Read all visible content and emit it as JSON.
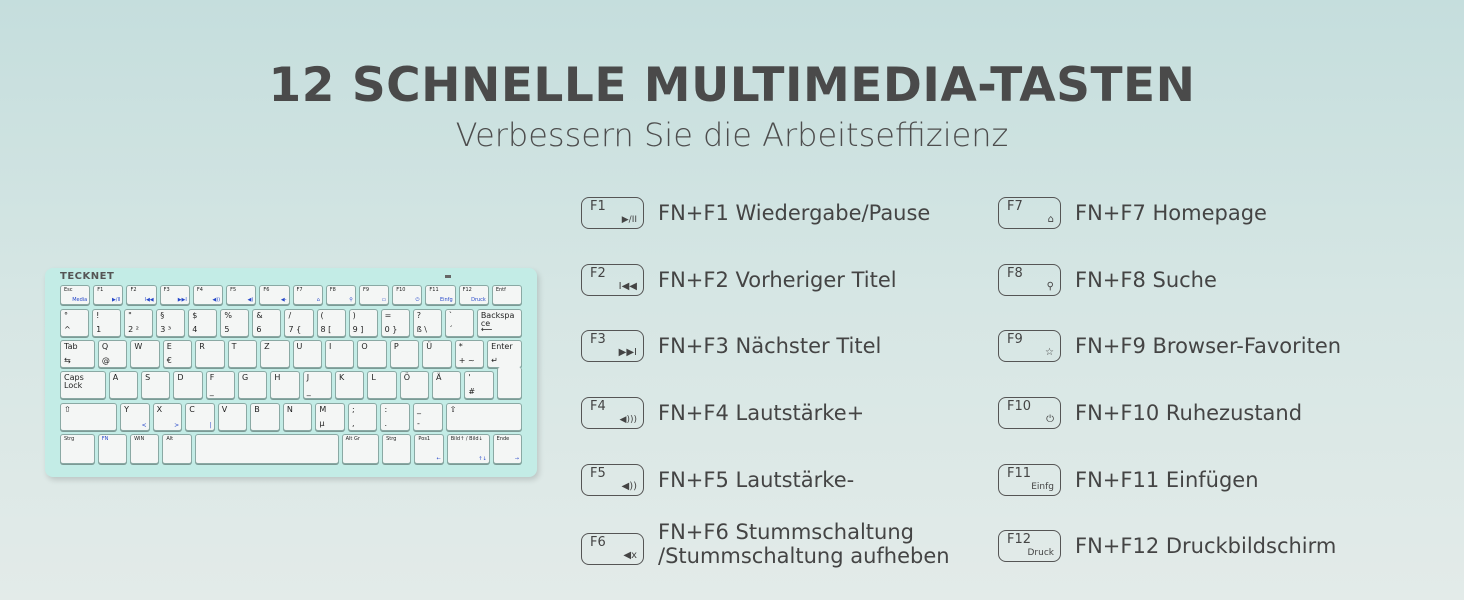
{
  "header": {
    "title": "12 SCHNELLE MULTIMEDIA-TASTEN",
    "subtitle": "Verbessern Sie die Arbeitseffizienz"
  },
  "keyboard": {
    "brand": "TECKNET",
    "rows": [
      [
        {
          "t": "Esc",
          "s": "Media"
        },
        {
          "t": "F1",
          "s": "▶/II"
        },
        {
          "t": "F2",
          "s": "I◀◀"
        },
        {
          "t": "F3",
          "s": "▶▶I"
        },
        {
          "t": "F4",
          "s": "◀))"
        },
        {
          "t": "F5",
          "s": "◀)"
        },
        {
          "t": "F6",
          "s": "◀-"
        },
        {
          "t": "F7",
          "s": "⌂"
        },
        {
          "t": "F8",
          "s": "⚲"
        },
        {
          "t": "F9",
          "s": "▭"
        },
        {
          "t": "F10",
          "s": "⏻"
        },
        {
          "t": "F11",
          "s": "Einfg"
        },
        {
          "t": "F12",
          "s": "Druck"
        },
        {
          "t": "Entf"
        }
      ],
      [
        {
          "t": "°",
          "b": "^"
        },
        {
          "t": "!",
          "b": "1"
        },
        {
          "t": "\"",
          "b": "2  ²"
        },
        {
          "t": "§",
          "b": "3  ³"
        },
        {
          "t": "$",
          "b": "4"
        },
        {
          "t": "%",
          "b": "5"
        },
        {
          "t": "&",
          "b": "6"
        },
        {
          "t": "/",
          "b": "7  {"
        },
        {
          "t": "(",
          "b": "8  ["
        },
        {
          "t": ")",
          "b": "9  ]"
        },
        {
          "t": "=",
          "b": "0  }"
        },
        {
          "t": "?",
          "b": "ß  \\"
        },
        {
          "t": "`",
          "b": "´"
        },
        {
          "t": "Backspace",
          "b": "⟵"
        }
      ],
      [
        {
          "t": "Tab",
          "b": "⇆"
        },
        {
          "t": "Q",
          "b": "   @"
        },
        {
          "t": "W"
        },
        {
          "t": "E",
          "b": "     €"
        },
        {
          "t": "R"
        },
        {
          "t": "T"
        },
        {
          "t": "Z"
        },
        {
          "t": "U"
        },
        {
          "t": "I"
        },
        {
          "t": "O"
        },
        {
          "t": "P"
        },
        {
          "t": "Ü"
        },
        {
          "t": "*",
          "b": "+ ~"
        },
        {
          "t": "Enter",
          "b": "↵"
        }
      ],
      [
        {
          "t": "Caps Lock"
        },
        {
          "t": "A"
        },
        {
          "t": "S"
        },
        {
          "t": "D"
        },
        {
          "t": "F",
          "b": "  _"
        },
        {
          "t": "G"
        },
        {
          "t": "H"
        },
        {
          "t": "J",
          "b": "  _"
        },
        {
          "t": "K"
        },
        {
          "t": "L"
        },
        {
          "t": "Ö"
        },
        {
          "t": "Ä"
        },
        {
          "t": "'",
          "b": "#"
        },
        {
          "t": ""
        }
      ],
      [
        {
          "t": "⇧"
        },
        {
          "t": "Y",
          "s": "<"
        },
        {
          "t": "X",
          "s": ">"
        },
        {
          "t": "C",
          "s": "|"
        },
        {
          "t": "V"
        },
        {
          "t": "B"
        },
        {
          "t": "N"
        },
        {
          "t": "M",
          "b": "     µ"
        },
        {
          "t": ";",
          "b": ","
        },
        {
          "t": ":",
          "b": "."
        },
        {
          "t": "_",
          "b": "-"
        },
        {
          "t": "⇧"
        }
      ],
      [
        {
          "t": "Strg"
        },
        {
          "t": "FN"
        },
        {
          "t": "WIN"
        },
        {
          "t": "Alt"
        },
        {
          "t": ""
        },
        {
          "t": "Alt Gr"
        },
        {
          "t": "Strg"
        },
        {
          "t": "Pos1",
          "s": "←"
        },
        {
          "t": "Bild↑ / Bild↓",
          "s": "↑↓"
        },
        {
          "t": "Ende",
          "s": "→"
        }
      ]
    ]
  },
  "shortcuts": [
    {
      "key": "F1",
      "icon": "▶/II",
      "icon_name": "play-pause-icon",
      "text": "FN+F1 Wiedergabe/Pause"
    },
    {
      "key": "F2",
      "icon": "I◀◀",
      "icon_name": "previous-track-icon",
      "text": "FN+F2 Vorheriger Titel"
    },
    {
      "key": "F3",
      "icon": "▶▶I",
      "icon_name": "next-track-icon",
      "text": "FN+F3 Nächster Titel"
    },
    {
      "key": "F4",
      "icon": "◀)))",
      "icon_name": "volume-up-icon",
      "text": "FN+F4 Lautstärke+"
    },
    {
      "key": "F5",
      "icon": "◀))",
      "icon_name": "volume-down-icon",
      "text": "FN+F5 Lautstärke-"
    },
    {
      "key": "F6",
      "icon": "◀x",
      "icon_name": "mute-icon",
      "text": "FN+F6 Stummschaltung /Stummschaltung aufheben"
    },
    {
      "key": "F7",
      "icon": "⌂",
      "icon_name": "home-icon",
      "text": "FN+F7 Homepage"
    },
    {
      "key": "F8",
      "icon": "⚲",
      "icon_name": "search-icon",
      "text": "FN+F8 Suche"
    },
    {
      "key": "F9",
      "icon": "☆",
      "icon_name": "favorites-folder-icon",
      "text": "FN+F9 Browser-Favoriten"
    },
    {
      "key": "F10",
      "icon": "⏻",
      "icon_name": "power-icon",
      "text": "FN+F10 Ruhezustand"
    },
    {
      "key": "F11",
      "icon": "Einfg",
      "icon_name": "insert-icon",
      "text": "FN+F11 Einfügen"
    },
    {
      "key": "F12",
      "icon": "Druck",
      "icon_name": "print-screen-icon",
      "text": "FN+F12 Druckbildschirm"
    }
  ],
  "colors": {
    "keyboard": "#c3ece6",
    "fn_accent": "#2547c9",
    "text": "#444444"
  }
}
